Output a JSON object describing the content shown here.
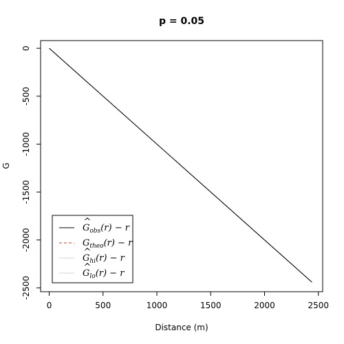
{
  "chart_data": {
    "type": "line",
    "title": "p =  0.05",
    "xlabel": "Distance (m)",
    "ylabel": "G",
    "xlim": [
      -80,
      2540
    ],
    "ylim": [
      -2540,
      80
    ],
    "x_ticks": [
      0,
      500,
      1000,
      1500,
      2000,
      2500
    ],
    "y_ticks": [
      0,
      -500,
      -1000,
      -1500,
      -2000,
      -2500
    ],
    "x_tick_labels": [
      "0",
      "500",
      "1000",
      "1500",
      "2000",
      "2500"
    ],
    "y_tick_labels": [
      "0",
      "-500",
      "-1000",
      "-1500",
      "-2000",
      "-2500"
    ],
    "legend_position": "bottom-left",
    "series": [
      {
        "key": "obs",
        "name": "Ĝobs(r) − r",
        "hat": true,
        "main": "G",
        "sub": "obs",
        "color": "#000000",
        "dash": "solid",
        "x": [
          0,
          2440
        ],
        "y": [
          0,
          -2440
        ]
      },
      {
        "key": "theo",
        "name": "Gtheo(r) − r",
        "hat": false,
        "main": "G",
        "sub": "theo",
        "color": "#d6341c",
        "dash": "dashed",
        "x": [
          0,
          2440
        ],
        "y": [
          0,
          -2440
        ]
      },
      {
        "key": "hi",
        "name": "Ĝhi(r) − r",
        "hat": true,
        "main": "G",
        "sub": "hi",
        "color": "#d3d3d3",
        "dash": "solid",
        "x": [
          0,
          2440
        ],
        "y": [
          0,
          -2440
        ]
      },
      {
        "key": "lo",
        "name": "Ĝlo(r) − r",
        "hat": true,
        "main": "G",
        "sub": "lo",
        "color": "#d3d3d3",
        "dash": "solid",
        "x": [
          0,
          2440
        ],
        "y": [
          0,
          -2440
        ]
      }
    ]
  }
}
